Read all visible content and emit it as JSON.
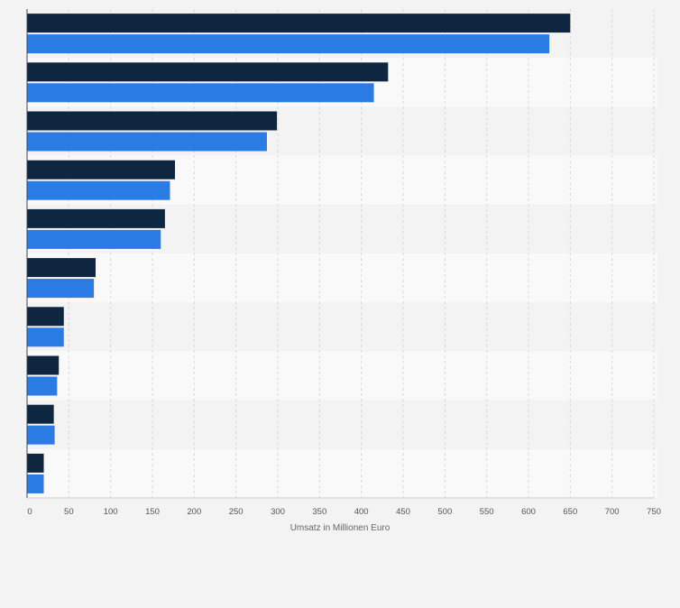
{
  "chart_data": {
    "type": "bar",
    "orientation": "horizontal",
    "categories": [
      "",
      "",
      "",
      "",
      "",
      "",
      "",
      "",
      "",
      ""
    ],
    "series": [
      {
        "values": [
          650,
          432,
          299,
          177,
          165,
          82,
          44,
          38,
          32,
          20
        ],
        "color": "#0f2640"
      },
      {
        "values": [
          625,
          415,
          287,
          171,
          160,
          80,
          44,
          36,
          33,
          20
        ],
        "color": "#2a7be4"
      }
    ],
    "xlim": [
      0,
      750
    ],
    "xticks": [
      0,
      50,
      100,
      150,
      200,
      250,
      300,
      350,
      400,
      450,
      500,
      550,
      600,
      650,
      700,
      750
    ],
    "xlabel": "Umsatz in Millionen Euro",
    "ylabel": "",
    "title": "",
    "grid": true,
    "legend": "none"
  },
  "colors": {
    "background": "#f3f3f3",
    "band_light": "#f9f9f9",
    "grid": "#d9d9d9",
    "axis": "#444444",
    "tick_text": "#555555"
  }
}
